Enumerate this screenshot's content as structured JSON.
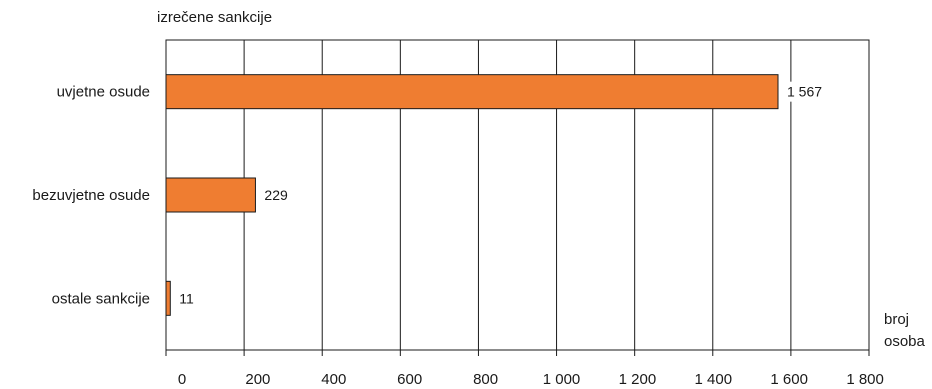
{
  "chart_data": {
    "type": "bar",
    "orientation": "horizontal",
    "ylabel": "izrečene sankcije",
    "xlabel_lines": [
      "broj",
      "osoba"
    ],
    "categories": [
      "uvjetne osude",
      "bezuvjetne osude",
      "ostale sankcije"
    ],
    "values": [
      1567,
      229,
      11
    ],
    "value_labels": [
      "1 567",
      "229",
      "11"
    ],
    "xlim": [
      0,
      1800
    ],
    "xticks": [
      0,
      200,
      400,
      600,
      800,
      1000,
      1200,
      1400,
      1600,
      1800
    ],
    "xtick_labels": [
      "0",
      "200",
      "400",
      "600",
      "800",
      "1 000",
      "1 200",
      "1 400",
      "1 600",
      "1 800"
    ],
    "grid": "vertical",
    "legend": "none",
    "bar_color": "#EF7D31",
    "bar_border_color": "#1a1a1a"
  }
}
